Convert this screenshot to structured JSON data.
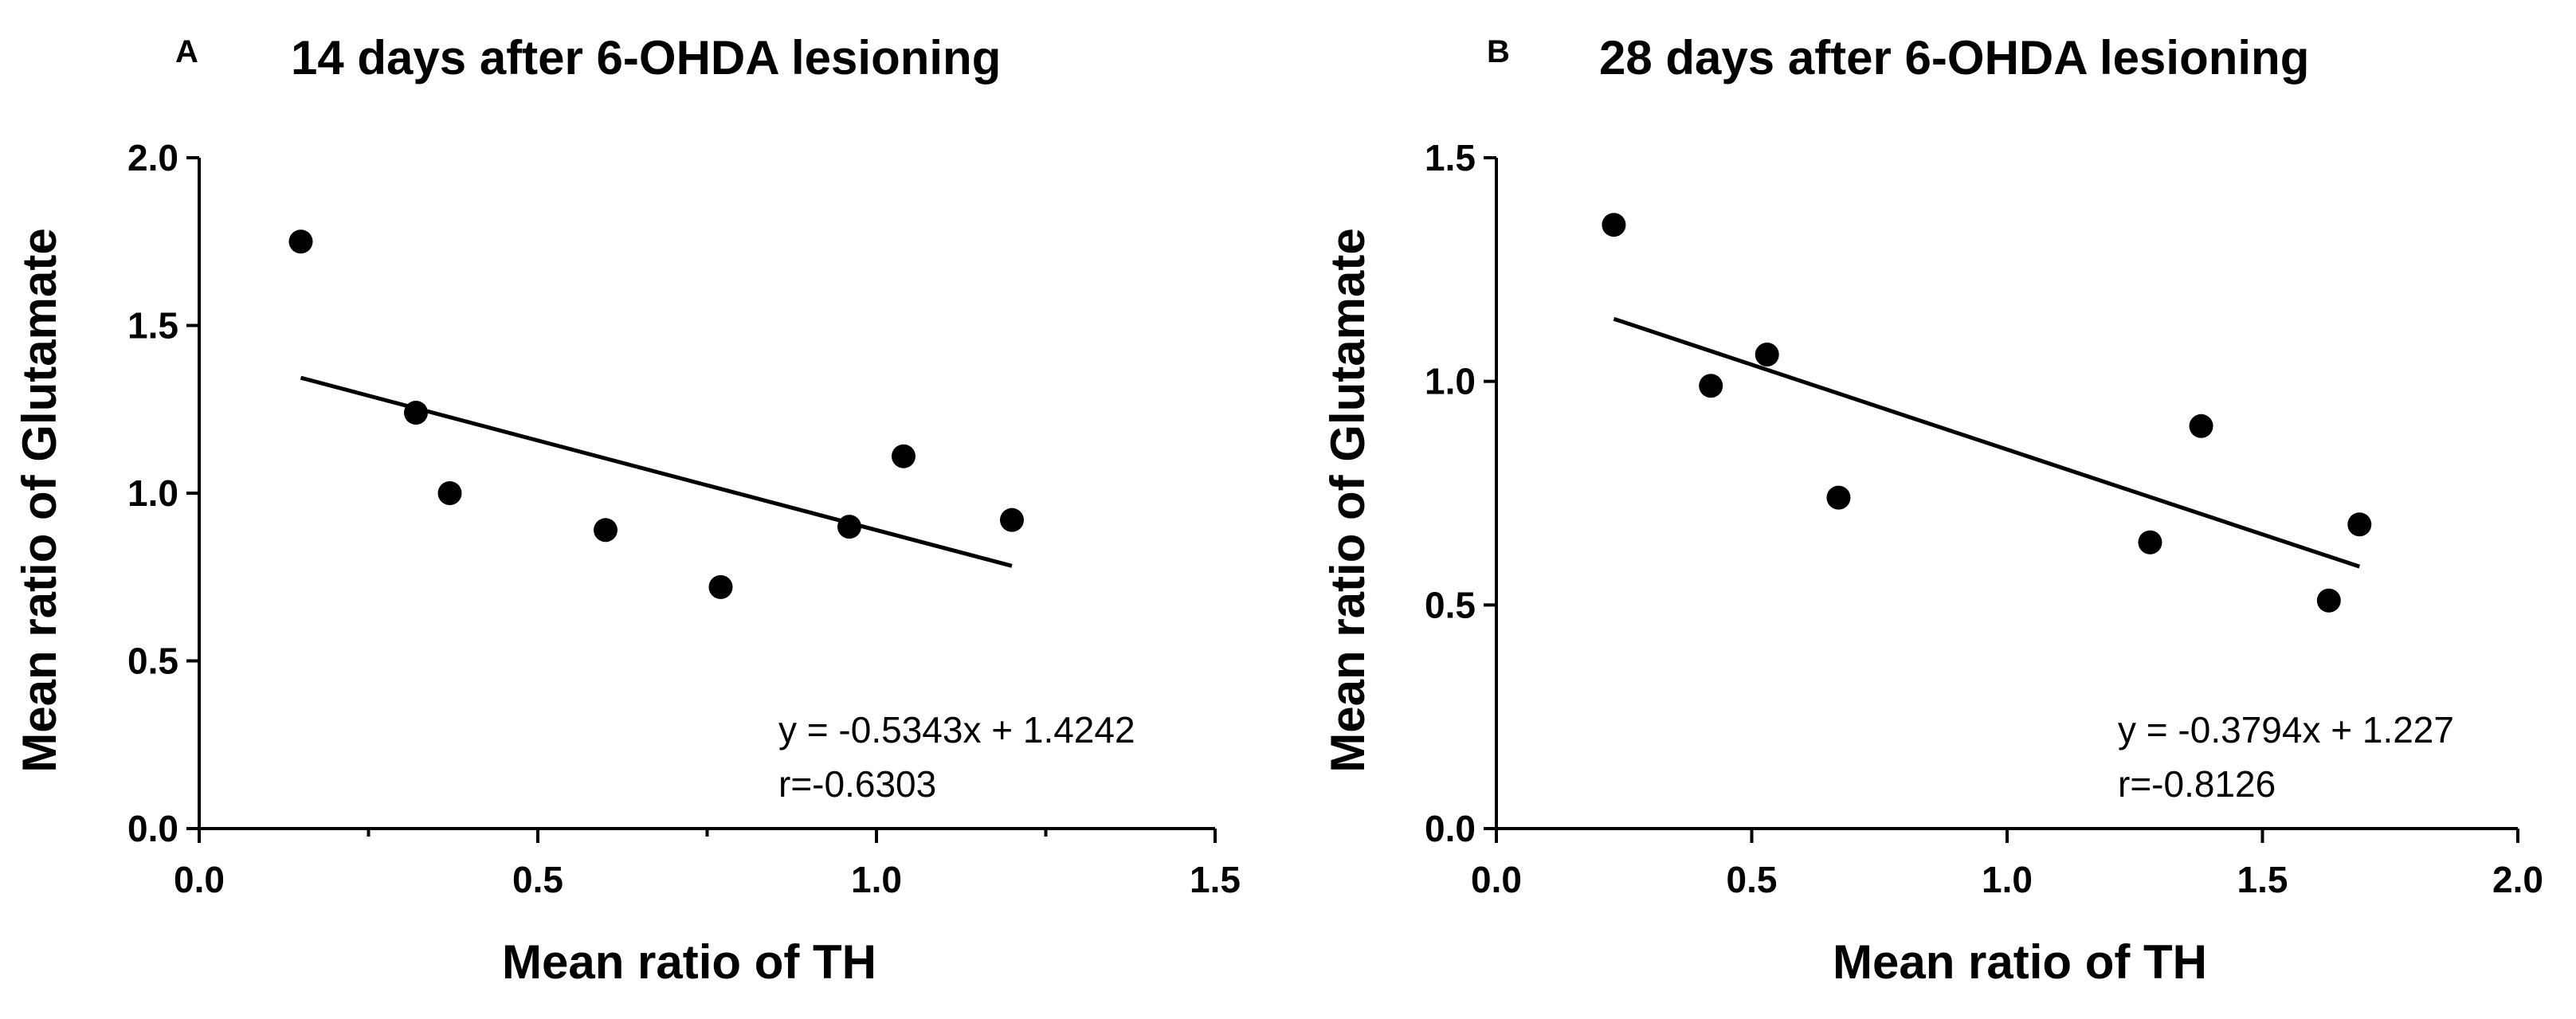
{
  "chart_data": [
    {
      "type": "scatter",
      "panel": "A",
      "title": "14 days after 6-OHDA lesioning",
      "xlabel": "Mean ratio of TH",
      "ylabel": "Mean ratio of Glutamate",
      "xlim": [
        0.0,
        1.5
      ],
      "ylim": [
        0.0,
        2.0
      ],
      "xticks": [
        0.0,
        0.5,
        1.0,
        1.5
      ],
      "xtick_labels": [
        "0.0",
        "0.5",
        "1.0",
        "1.5"
      ],
      "xminor": [
        0.25,
        0.75,
        1.25
      ],
      "yticks": [
        0.0,
        0.5,
        1.0,
        1.5,
        2.0
      ],
      "ytick_labels": [
        "0.0",
        "0.5",
        "1.0",
        "1.5",
        "2.0"
      ],
      "points": [
        {
          "x": 0.15,
          "y": 1.75
        },
        {
          "x": 0.32,
          "y": 1.24
        },
        {
          "x": 0.37,
          "y": 1.0
        },
        {
          "x": 0.6,
          "y": 0.89
        },
        {
          "x": 0.77,
          "y": 0.72
        },
        {
          "x": 0.96,
          "y": 0.9
        },
        {
          "x": 1.04,
          "y": 1.11
        },
        {
          "x": 1.2,
          "y": 0.92
        }
      ],
      "fit": {
        "slope": -0.5343,
        "intercept": 1.4242,
        "x_range": [
          0.15,
          1.2
        ]
      },
      "equation": "y = -0.5343x + 1.4242",
      "r_text": "r=-0.6303",
      "grid": false
    },
    {
      "type": "scatter",
      "panel": "B",
      "title": "28 days after 6-OHDA lesioning",
      "xlabel": "Mean ratio of TH",
      "ylabel": "Mean ratio of Glutamate",
      "xlim": [
        0.0,
        2.0
      ],
      "ylim": [
        0.0,
        1.5
      ],
      "xticks": [
        0.0,
        0.5,
        1.0,
        1.5,
        2.0
      ],
      "xtick_labels": [
        "0.0",
        "0.5",
        "1.0",
        "1.5",
        "2.0"
      ],
      "xminor": [],
      "yticks": [
        0.0,
        0.5,
        1.0,
        1.5
      ],
      "ytick_labels": [
        "0.0",
        "0.5",
        "1.0",
        "1.5"
      ],
      "points": [
        {
          "x": 0.23,
          "y": 1.35
        },
        {
          "x": 0.42,
          "y": 0.99
        },
        {
          "x": 0.53,
          "y": 1.06
        },
        {
          "x": 0.67,
          "y": 0.74
        },
        {
          "x": 1.28,
          "y": 0.64
        },
        {
          "x": 1.38,
          "y": 0.9
        },
        {
          "x": 1.63,
          "y": 0.51
        },
        {
          "x": 1.69,
          "y": 0.68
        }
      ],
      "fit": {
        "slope": -0.3794,
        "intercept": 1.227,
        "x_range": [
          0.23,
          1.69
        ]
      },
      "equation": "y = -0.3794x + 1.227",
      "r_text": "r=-0.8126",
      "grid": false
    }
  ]
}
